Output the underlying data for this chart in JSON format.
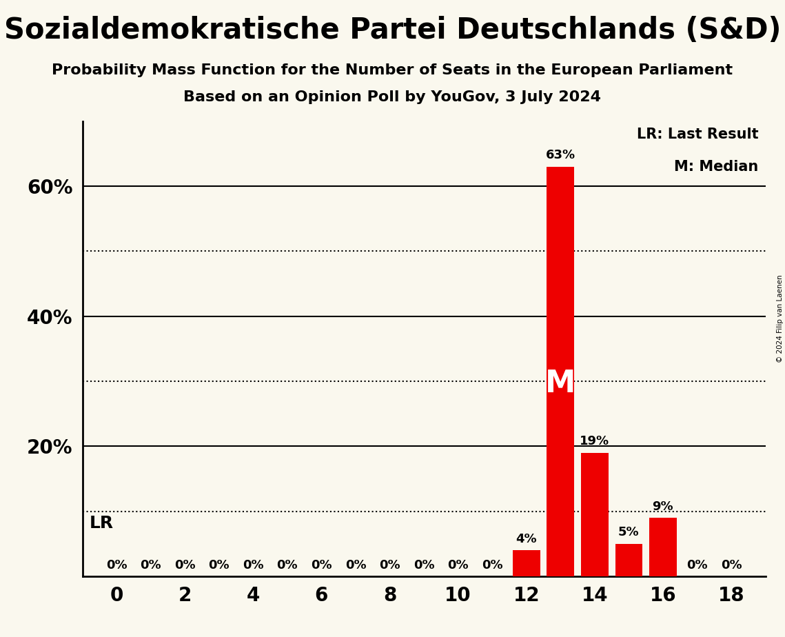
{
  "title": "Sozialdemokratische Partei Deutschlands (S&D)",
  "subtitle1": "Probability Mass Function for the Number of Seats in the European Parliament",
  "subtitle2": "Based on an Opinion Poll by YouGov, 3 July 2024",
  "copyright": "© 2024 Filip van Laenen",
  "seats": [
    0,
    1,
    2,
    3,
    4,
    5,
    6,
    7,
    8,
    9,
    10,
    11,
    12,
    13,
    14,
    15,
    16,
    17,
    18
  ],
  "probabilities": [
    0,
    0,
    0,
    0,
    0,
    0,
    0,
    0,
    0,
    0,
    0,
    0,
    4,
    63,
    19,
    5,
    9,
    0,
    0
  ],
  "bar_color": "#ee0000",
  "background_color": "#faf8ee",
  "median_seat": 13,
  "lr_value": 10,
  "lr_label": "LR",
  "legend_lr": "LR: Last Result",
  "legend_m": "M: Median",
  "xlabel_seats": [
    0,
    2,
    4,
    6,
    8,
    10,
    12,
    14,
    16,
    18
  ],
  "ylim": [
    0,
    70
  ],
  "labeled_yticks": [
    20,
    40,
    60
  ],
  "dotted_lines": [
    10,
    30,
    50
  ],
  "solid_lines": [
    20,
    40,
    60
  ],
  "bar_label_fontsize": 13,
  "tick_fontsize": 20,
  "title_fontsize": 30,
  "subtitle_fontsize": 16
}
